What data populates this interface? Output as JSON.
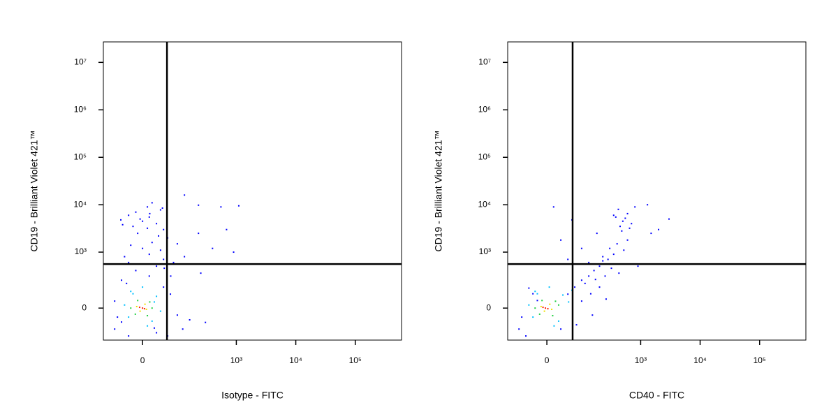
{
  "chart_data": [
    {
      "type": "scatter",
      "x_label": "Isotype - FITC",
      "y_label": "CD19 - Brilliant Violet 421™",
      "xscale": "biexponential",
      "yscale": "biexponential",
      "xlim": [
        -115,
        600000
      ],
      "ylim": [
        -300,
        27000000
      ],
      "xticks": [
        0,
        {
          "value": 1000,
          "label": "10³"
        },
        {
          "value": 10000,
          "label": "10⁴"
        },
        {
          "value": 100000,
          "label": "10⁵"
        }
      ],
      "yticks": [
        0,
        {
          "value": 1000,
          "label": "10³"
        },
        {
          "value": 10000,
          "label": "10⁴"
        },
        {
          "value": 100000,
          "label": "10⁵"
        },
        {
          "value": 1000000,
          "label": "10⁶"
        },
        {
          "value": 10000000,
          "label": "10⁷"
        }
      ],
      "gates": {
        "x": 58,
        "y": 555
      },
      "series": [
        {
          "color": "#0000ff",
          "x": [
            -69,
            -48,
            -30,
            30,
            48,
            69,
            95,
            -69,
            -48,
            14,
            60,
            -14,
            30,
            48,
            14,
            -30,
            0,
            20,
            -10,
            -20,
            0,
            14,
            -14,
            10,
            30,
            -30,
            48,
            95,
            129,
            228,
            396,
            684,
            550,
            1100,
            228,
            129,
            900,
            120,
            300,
            40,
            70,
            -40,
            60,
            -50,
            40,
            20,
            -60,
            -35,
            25,
            50,
            -25,
            10,
            80,
            -5,
            35,
            -45,
            15,
            45,
            160,
            250
          ],
          "y": [
            -160,
            240,
            -240,
            -200,
            160,
            97,
            -46,
            46,
            -97,
            300,
            -240,
            400,
            500,
            700,
            900,
            600,
            1200,
            1600,
            2500,
            3500,
            4500,
            5500,
            7000,
            9000,
            4000,
            6000,
            3000,
            1500,
            800,
            2500,
            1200,
            3000,
            9000,
            9500,
            9800,
            16000,
            1000,
            -160,
            -100,
            1100,
            300,
            800,
            2000,
            4800,
            7800,
            11000,
            -60,
            200,
            -150,
            450,
            1400,
            3200,
            600,
            5000,
            2200,
            3800,
            6500,
            8500,
            -80,
            350
          ]
        },
        {
          "color": "#00c0ff",
          "x": [
            -30,
            30,
            -20,
            20,
            0,
            -40,
            40,
            10,
            -25,
            25
          ],
          "y": [
            -60,
            80,
            100,
            -90,
            160,
            20,
            -20,
            -130,
            120,
            40
          ]
        },
        {
          "color": "#20d040",
          "x": [
            -15,
            15,
            -10,
            10,
            20,
            -25
          ],
          "y": [
            -40,
            40,
            50,
            -50,
            0,
            0
          ]
        },
        {
          "color": "#f0e000",
          "x": [
            -5,
            5,
            -12,
            8
          ],
          "y": [
            -20,
            25,
            10,
            -8
          ]
        },
        {
          "color": "#ff2000",
          "x": [
            0,
            -6,
            4
          ],
          "y": [
            0,
            5,
            -4
          ]
        }
      ]
    },
    {
      "type": "scatter",
      "x_label": "CD40 - FITC",
      "y_label": "CD19 - Brilliant Violet 421™",
      "xscale": "biexponential",
      "yscale": "biexponential",
      "xlim": [
        -115,
        600000
      ],
      "ylim": [
        -300,
        27000000
      ],
      "xticks": [
        0,
        {
          "value": 1000,
          "label": "10³"
        },
        {
          "value": 10000,
          "label": "10⁴"
        },
        {
          "value": 100000,
          "label": "10⁵"
        }
      ],
      "yticks": [
        0,
        {
          "value": 1000,
          "label": "10³"
        },
        {
          "value": 10000,
          "label": "10⁴"
        },
        {
          "value": 100000,
          "label": "10⁵"
        },
        {
          "value": 1000000,
          "label": "10⁶"
        },
        {
          "value": 10000000,
          "label": "10⁷"
        }
      ],
      "gates": {
        "x": 62,
        "y": 555
      },
      "series": [
        {
          "color": "#0000ff",
          "x": [
            -69,
            -48,
            -30,
            30,
            48,
            69,
            95,
            95,
            129,
            160,
            200,
            228,
            280,
            350,
            400,
            450,
            500,
            380,
            600,
            700,
            420,
            800,
            1300,
            2000,
            1500,
            3000,
            600,
            300,
            228,
            129,
            95,
            48,
            30,
            14,
            60,
            -20,
            180,
            200,
            150,
            250,
            900,
            110,
            140,
            170,
            320,
            480,
            550,
            650,
            520,
            350,
            -60,
            -40,
            75,
            260,
            430
          ],
          "y": [
            -160,
            -240,
            100,
            -160,
            97,
            160,
            46,
            240,
            300,
            400,
            500,
            650,
            700,
            900,
            1500,
            3500,
            4500,
            5500,
            6500,
            4000,
            8000,
            9000,
            10000,
            3000,
            2500,
            5000,
            1800,
            1200,
            800,
            600,
            1200,
            700,
            1800,
            9000,
            4800,
            50,
            2500,
            160,
            -46,
            300,
            500,
            200,
            100,
            250,
            450,
            2800,
            5200,
            3200,
            1100,
            6000,
            -60,
            150,
            -120,
            60,
            350
          ]
        },
        {
          "color": "#00c0ff",
          "x": [
            -30,
            35,
            -20,
            25,
            5,
            -40,
            50,
            15,
            -25,
            60
          ],
          "y": [
            -60,
            90,
            100,
            -90,
            160,
            20,
            40,
            -130,
            120,
            130
          ]
        },
        {
          "color": "#20d040",
          "x": [
            -15,
            18,
            -10,
            12,
            25,
            -25
          ],
          "y": [
            -40,
            45,
            50,
            -50,
            20,
            0
          ]
        },
        {
          "color": "#f0e000",
          "x": [
            -5,
            6,
            -12,
            10
          ],
          "y": [
            -20,
            25,
            10,
            -8
          ]
        },
        {
          "color": "#ff2000",
          "x": [
            -3,
            -8,
            2
          ],
          "y": [
            0,
            5,
            -4
          ]
        }
      ]
    }
  ]
}
